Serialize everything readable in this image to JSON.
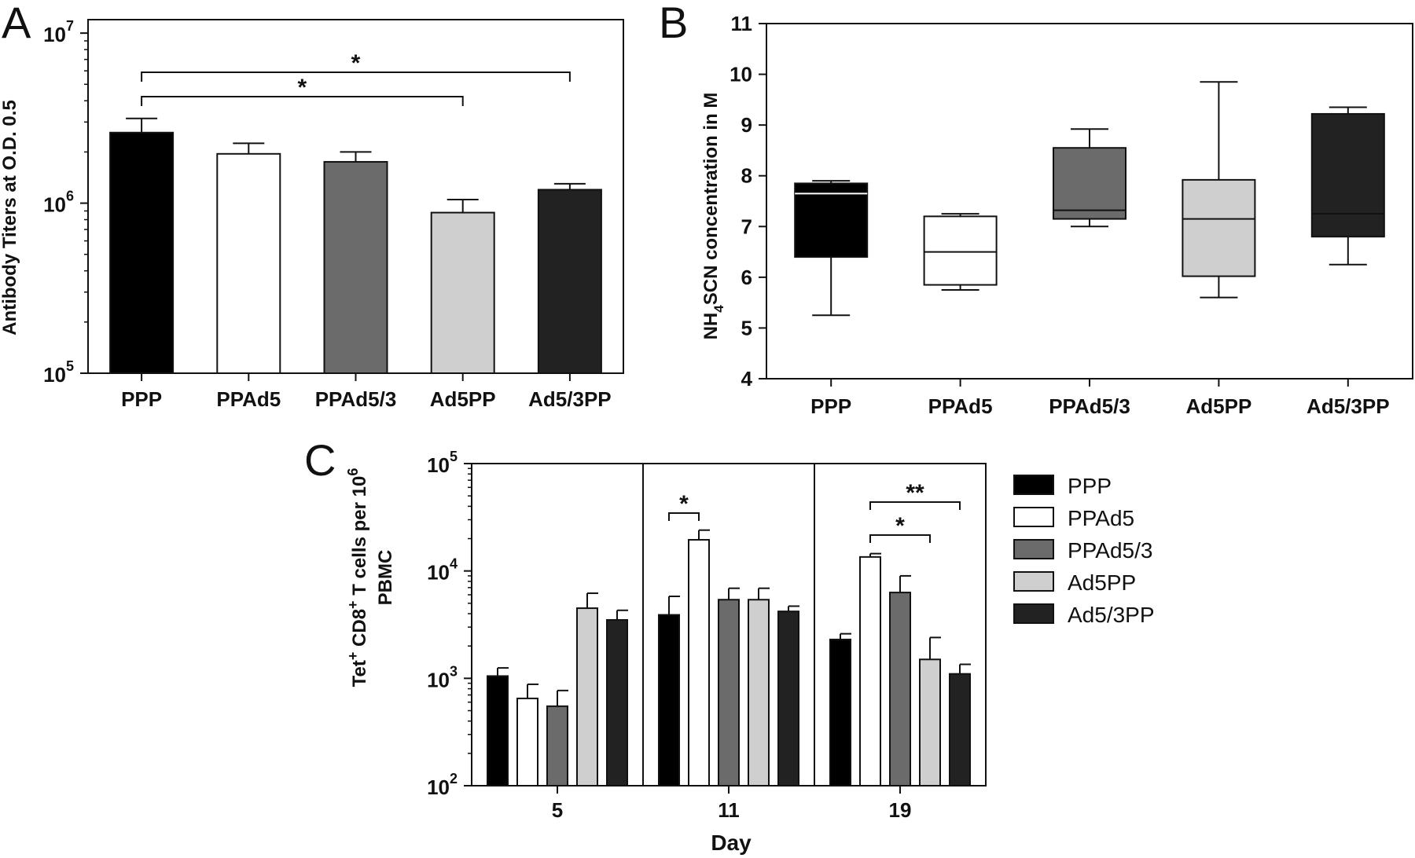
{
  "colors": {
    "PPP": "#000000",
    "PPAd5": "#ffffff",
    "PPAd5/3": "#6b6b6b",
    "Ad5PP": "#cfcfcf",
    "Ad5/3PP": "#222222"
  },
  "chart_data": [
    {
      "panel": "A",
      "type": "bar",
      "ylabel": "Antibody Titers at O.D. 0.5",
      "yscale": "log",
      "ylim": [
        100000,
        12000000
      ],
      "yticks": [
        {
          "value": 100000,
          "base": "10",
          "exp": "5"
        },
        {
          "value": 1000000,
          "base": "10",
          "exp": "6"
        },
        {
          "value": 10000000,
          "base": "10",
          "exp": "7"
        }
      ],
      "categories": [
        "PPP",
        "PPAd5",
        "PPAd5/3",
        "Ad5PP",
        "Ad5/3PP"
      ],
      "values": [
        2600000,
        1950000,
        1750000,
        880000,
        1200000
      ],
      "errors": [
        3150000,
        2250000,
        2000000,
        1050000,
        1300000
      ],
      "significance": [
        {
          "from": "PPP",
          "to": "Ad5/3PP",
          "label": "*"
        },
        {
          "from": "PPP",
          "to": "Ad5PP",
          "label": "*"
        }
      ]
    },
    {
      "panel": "B",
      "type": "box",
      "ylabel": "NH4SCN concentration in M",
      "ylabel_parts": {
        "pre": "NH",
        "sub": "4",
        "post": "SCN concentration in M"
      },
      "ylim": [
        4,
        11
      ],
      "yticks": [
        4,
        5,
        6,
        7,
        8,
        9,
        10,
        11
      ],
      "categories": [
        "PPP",
        "PPAd5",
        "PPAd5/3",
        "Ad5PP",
        "Ad5/3PP"
      ],
      "boxes": [
        {
          "min": 5.25,
          "q1": 6.4,
          "median": 7.65,
          "q3": 7.85,
          "max": 7.9
        },
        {
          "min": 5.75,
          "q1": 5.85,
          "median": 6.5,
          "q3": 7.2,
          "max": 7.25
        },
        {
          "min": 7.0,
          "q1": 7.15,
          "median": 7.32,
          "q3": 8.55,
          "max": 8.92
        },
        {
          "min": 5.6,
          "q1": 6.02,
          "median": 7.15,
          "q3": 7.92,
          "max": 9.85
        },
        {
          "min": 6.25,
          "q1": 6.8,
          "median": 7.25,
          "q3": 9.22,
          "max": 9.35
        }
      ]
    },
    {
      "panel": "C",
      "type": "bar",
      "ylabel": "Tet+ CD8+ T cells per 106 PBMC",
      "ylabel_line1": {
        "a": "Tet",
        "a_sup": "+",
        "b": " CD8",
        "b_sup": "+",
        "c": " T cells per 10",
        "c_sup": "6"
      },
      "ylabel_line2": "PBMC",
      "xlabel": "Day",
      "yscale": "log",
      "ylim": [
        100,
        100000
      ],
      "yticks": [
        {
          "value": 100,
          "base": "10",
          "exp": "2"
        },
        {
          "value": 1000,
          "base": "10",
          "exp": "3"
        },
        {
          "value": 10000,
          "base": "10",
          "exp": "4"
        },
        {
          "value": 100000,
          "base": "10",
          "exp": "5"
        }
      ],
      "categories": [
        "5",
        "11",
        "19"
      ],
      "series": [
        {
          "name": "PPP",
          "values": [
            1050,
            3900,
            2300
          ],
          "errors": [
            1250,
            5800,
            2600
          ]
        },
        {
          "name": "PPAd5",
          "values": [
            650,
            19500,
            13500
          ],
          "errors": [
            880,
            24000,
            14500
          ]
        },
        {
          "name": "PPAd5/3",
          "values": [
            550,
            5400,
            6300
          ],
          "errors": [
            770,
            6900,
            9000
          ]
        },
        {
          "name": "Ad5PP",
          "values": [
            4500,
            5400,
            1500
          ],
          "errors": [
            6200,
            6900,
            2400
          ]
        },
        {
          "name": "Ad5/3PP",
          "values": [
            3500,
            4200,
            1100
          ],
          "errors": [
            4300,
            4700,
            1350
          ]
        }
      ],
      "significance": [
        {
          "group": "11",
          "from": "PPP",
          "to": "PPAd5",
          "label": "*"
        },
        {
          "group": "19",
          "from": "PPAd5",
          "to": "Ad5/3PP",
          "label": "**"
        },
        {
          "group": "19",
          "from": "PPAd5",
          "to": "Ad5PP",
          "label": "*"
        }
      ],
      "legend": {
        "placement": "right",
        "entries": [
          "PPP",
          "PPAd5",
          "PPAd5/3",
          "Ad5PP",
          "Ad5/3PP"
        ]
      }
    }
  ],
  "panel_labels": [
    "A",
    "B",
    "C"
  ]
}
